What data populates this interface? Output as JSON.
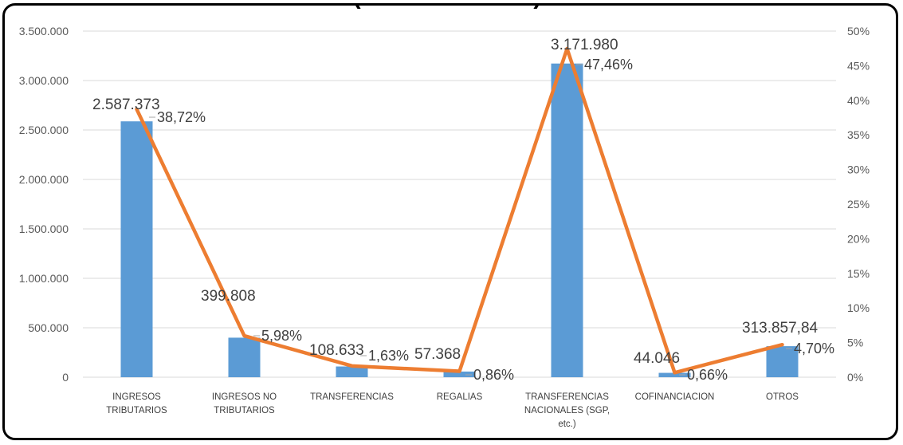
{
  "chart_data": {
    "type": "bar",
    "title": "(                          )",
    "categories": [
      [
        "INGRESOS",
        "TRIBUTARIOS"
      ],
      [
        "INGRESOS NO",
        "TRIBUTARIOS"
      ],
      [
        "TRANSFERENCIAS"
      ],
      [
        "REGALIAS"
      ],
      [
        "TRANSFERENCIAS",
        "NACIONALES (SGP,",
        "etc.)"
      ],
      [
        "COFINANCIACION"
      ],
      [
        "OTROS"
      ]
    ],
    "series": [
      {
        "type": "bar",
        "axis": "left",
        "color": "#5b9bd5",
        "values": [
          2587373,
          399808,
          108633,
          57368,
          3171980,
          44046,
          313857.84
        ],
        "labels": [
          "2.587.373",
          "399.808",
          "108.633",
          "57.368",
          "3.171.980",
          "44.046",
          "313.857,84"
        ]
      },
      {
        "type": "line",
        "axis": "right",
        "color": "#ed7d31",
        "values": [
          38.72,
          5.98,
          1.63,
          0.86,
          47.46,
          0.66,
          4.7
        ],
        "labels": [
          "38,72%",
          "5,98%",
          "1,63%",
          "0,86%",
          "47,46%",
          "0,66%",
          "4,70%"
        ]
      }
    ],
    "y_left": {
      "min": 0,
      "max": 3500000,
      "ticks": [
        "0",
        "500.000",
        "1.000.000",
        "1.500.000",
        "2.000.000",
        "2.500.000",
        "3.000.000",
        "3.500.000"
      ]
    },
    "y_right": {
      "min": 0,
      "max": 50,
      "ticks": [
        "0%",
        "5%",
        "10%",
        "15%",
        "20%",
        "25%",
        "30%",
        "35%",
        "40%",
        "45%",
        "50%"
      ]
    },
    "grid": true
  }
}
